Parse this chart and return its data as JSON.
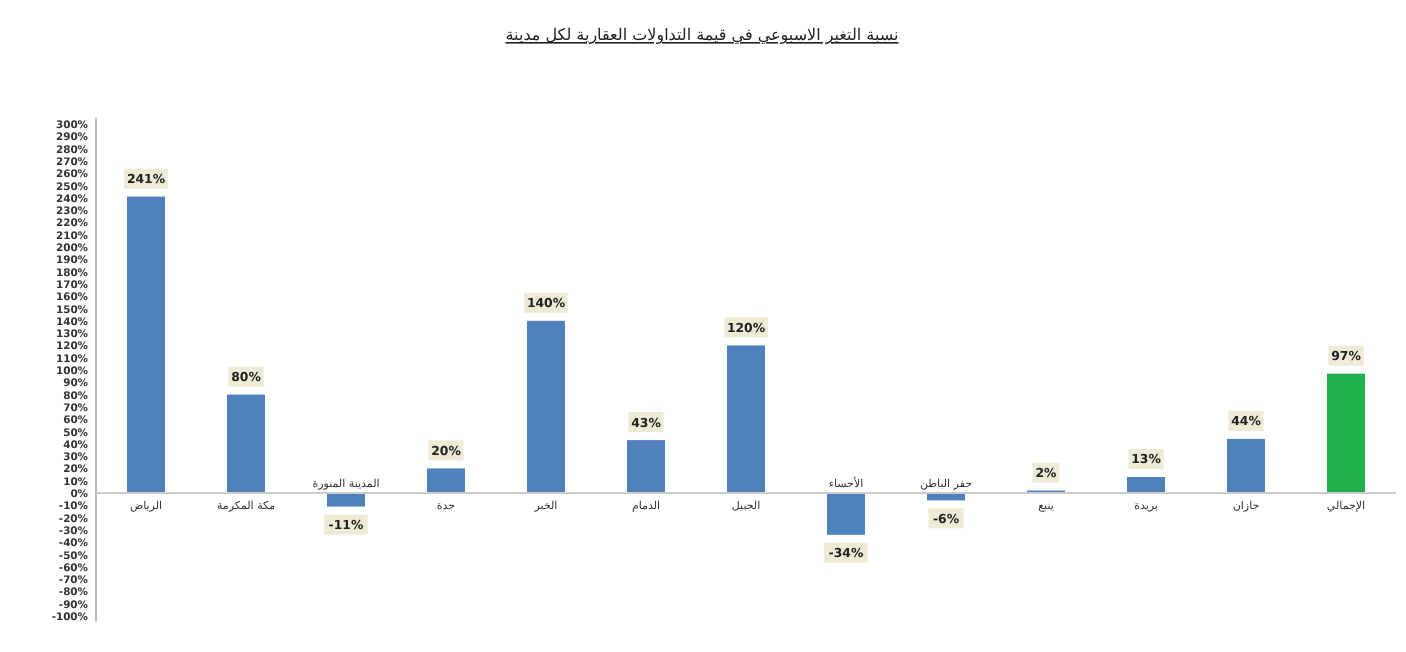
{
  "chart_data": {
    "type": "bar",
    "title": "نسبة التغير الاسبوعي في قيمة التداولات العقارية لكل مدينة",
    "categories": [
      "الرياض",
      "مكة المكرمة",
      "المدينة المنورة",
      "جدة",
      "الخبر",
      "الدمام",
      "الجبيل",
      "الأحساء",
      "حفر الباطن",
      "ينبع",
      "بريدة",
      "جازان",
      "الإجمالي"
    ],
    "values": [
      241,
      80,
      -11,
      20,
      140,
      43,
      120,
      -34,
      -6,
      2,
      13,
      44,
      97
    ],
    "value_labels": [
      "241%",
      "80%",
      "-11%",
      "20%",
      "140%",
      "43%",
      "120%",
      "-34%",
      "-6%",
      "2%",
      "13%",
      "44%",
      "97%"
    ],
    "colors": [
      "#4f81bd",
      "#4f81bd",
      "#4f81bd",
      "#4f81bd",
      "#4f81bd",
      "#4f81bd",
      "#4f81bd",
      "#4f81bd",
      "#4f81bd",
      "#4f81bd",
      "#4f81bd",
      "#4f81bd",
      "#21b04b"
    ],
    "ylim": [
      -100,
      300
    ],
    "yticks": [
      {
        "value": -100,
        "label": "-100%"
      },
      {
        "value": -90,
        "label": "-90%"
      },
      {
        "value": -80,
        "label": "-80%"
      },
      {
        "value": -70,
        "label": "-70%"
      },
      {
        "value": -60,
        "label": "-60%"
      },
      {
        "value": -50,
        "label": "-50%"
      },
      {
        "value": -40,
        "label": "-40%"
      },
      {
        "value": -30,
        "label": "-30%"
      },
      {
        "value": -20,
        "label": "-20%"
      },
      {
        "value": -10,
        "label": "-10%"
      },
      {
        "value": 0,
        "label": "0%"
      },
      {
        "value": 10,
        "label": "10%"
      },
      {
        "value": 20,
        "label": "20%"
      },
      {
        "value": 30,
        "label": "30%"
      },
      {
        "value": 40,
        "label": "40%"
      },
      {
        "value": 50,
        "label": "50%"
      },
      {
        "value": 60,
        "label": "60%"
      },
      {
        "value": 70,
        "label": "70%"
      },
      {
        "value": 80,
        "label": "80%"
      },
      {
        "value": 90,
        "label": "90%"
      },
      {
        "value": 100,
        "label": "100%"
      },
      {
        "value": 110,
        "label": "110%"
      },
      {
        "value": 120,
        "label": "120%"
      },
      {
        "value": 130,
        "label": "130%"
      },
      {
        "value": 140,
        "label": "140%"
      },
      {
        "value": 150,
        "label": "150%"
      },
      {
        "value": 160,
        "label": "160%"
      },
      {
        "value": 170,
        "label": "170%"
      },
      {
        "value": 180,
        "label": "180%"
      },
      {
        "value": 190,
        "label": "190%"
      },
      {
        "value": 200,
        "label": "200%"
      },
      {
        "value": 210,
        "label": "210%"
      },
      {
        "value": 220,
        "label": "220%"
      },
      {
        "value": 230,
        "label": "230%"
      },
      {
        "value": 240,
        "label": "240%"
      },
      {
        "value": 250,
        "label": "250%"
      },
      {
        "value": 260,
        "label": "260%"
      },
      {
        "value": 270,
        "label": "270%"
      },
      {
        "value": 280,
        "label": "280%"
      },
      {
        "value": 290,
        "label": "290%"
      },
      {
        "value": 300,
        "label": "300%"
      }
    ]
  }
}
